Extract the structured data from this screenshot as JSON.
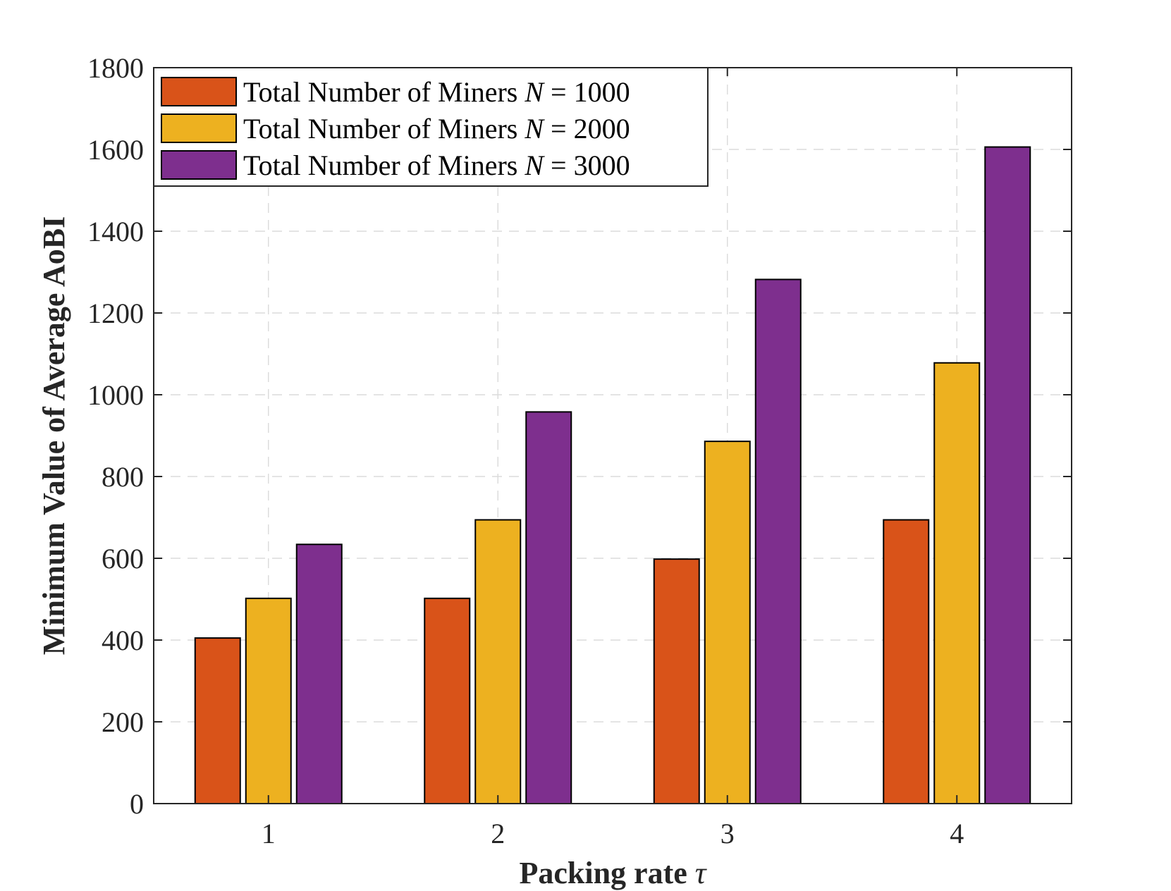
{
  "chart_data": {
    "type": "bar",
    "title": "",
    "xlabel": "Packing rate",
    "xlabel_symbol": "τ",
    "ylabel": "Minimum Value of Average AoBI",
    "categories": [
      "1",
      "2",
      "3",
      "4"
    ],
    "ylim": [
      0,
      1800
    ],
    "yticks": [
      "0",
      "200",
      "400",
      "600",
      "800",
      "1000",
      "1200",
      "1400",
      "1600",
      "1800"
    ],
    "grid": true,
    "legend_position": "top-left",
    "series": [
      {
        "name": "Total Number of Miners N = 1000",
        "legend_prefix": "Total Number of Miners",
        "legend_var": "N",
        "legend_eq": "= 1000",
        "color": "#D95319",
        "values": [
          405,
          502,
          598,
          694
        ]
      },
      {
        "name": "Total Number of Miners N = 2000",
        "legend_prefix": "Total Number of Miners",
        "legend_var": "N",
        "legend_eq": "= 2000",
        "color": "#EDB120",
        "values": [
          502,
          694,
          886,
          1078
        ]
      },
      {
        "name": "Total Number of Miners N = 3000",
        "legend_prefix": "Total Number of Miners",
        "legend_var": "N",
        "legend_eq": "= 3000",
        "color": "#7E2F8E",
        "values": [
          634,
          958,
          1282,
          1606
        ]
      }
    ]
  }
}
